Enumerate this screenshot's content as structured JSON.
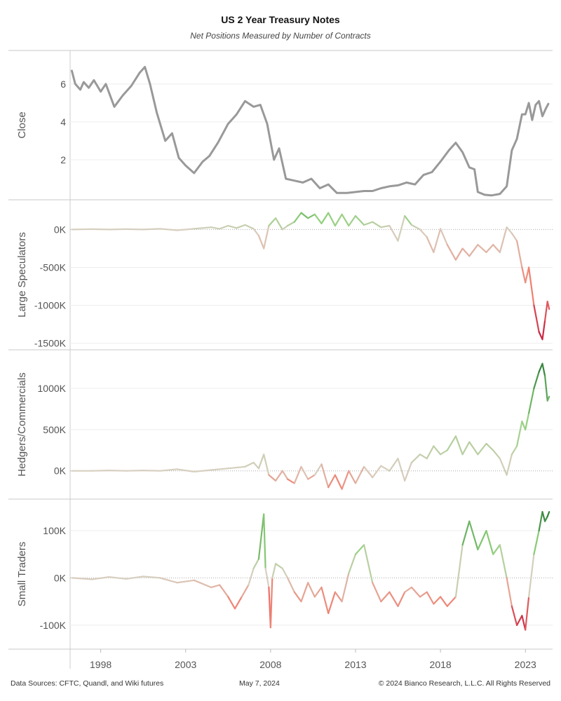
{
  "title": "US 2 Year Treasury Notes",
  "subtitle": "Net Positions Measured by Number of Contracts",
  "footer": {
    "source": "Data Sources: CFTC, Quandl, and Wiki futures",
    "date": "May 7, 2024",
    "copyright": "© 2024 Bianco Research, L.L.C. All Rights Reserved"
  },
  "colors": {
    "close_line": "#999999",
    "negative_strong": "#c0153a",
    "negative_mid": "#f08070",
    "neutral": "#d8cfc0",
    "positive_mid": "#8fd07a",
    "positive_strong": "#2e7d3a"
  },
  "chart_data": {
    "type": "line",
    "x_axis": {
      "label": "",
      "range": [
        1996.2,
        2024.6
      ],
      "ticks": [
        1998,
        2003,
        2008,
        2013,
        2018,
        2023
      ],
      "tick_labels": [
        "1998",
        "2003",
        "2008",
        "2013",
        "2018",
        "2023"
      ]
    },
    "panels": [
      {
        "name": "Close",
        "ylabel": "Close",
        "ylim": [
          0,
          7.4
        ],
        "ticks": [
          2,
          4,
          6
        ],
        "tick_labels": [
          "2",
          "4",
          "6"
        ],
        "zero_line": false,
        "color_mode": "solid",
        "points": [
          [
            1996.3,
            6.7
          ],
          [
            1996.5,
            6.0
          ],
          [
            1996.8,
            5.7
          ],
          [
            1997.0,
            6.1
          ],
          [
            1997.3,
            5.8
          ],
          [
            1997.6,
            6.2
          ],
          [
            1998.0,
            5.6
          ],
          [
            1998.3,
            6.0
          ],
          [
            1998.8,
            4.8
          ],
          [
            1999.3,
            5.4
          ],
          [
            1999.8,
            5.9
          ],
          [
            2000.3,
            6.6
          ],
          [
            2000.6,
            6.9
          ],
          [
            2000.9,
            6.0
          ],
          [
            2001.3,
            4.5
          ],
          [
            2001.8,
            3.0
          ],
          [
            2002.2,
            3.4
          ],
          [
            2002.6,
            2.1
          ],
          [
            2003.0,
            1.7
          ],
          [
            2003.5,
            1.3
          ],
          [
            2004.0,
            1.9
          ],
          [
            2004.4,
            2.2
          ],
          [
            2004.9,
            2.9
          ],
          [
            2005.5,
            3.9
          ],
          [
            2006.0,
            4.4
          ],
          [
            2006.5,
            5.1
          ],
          [
            2007.0,
            4.8
          ],
          [
            2007.4,
            4.9
          ],
          [
            2007.8,
            3.9
          ],
          [
            2008.2,
            2.0
          ],
          [
            2008.5,
            2.6
          ],
          [
            2008.9,
            1.0
          ],
          [
            2009.4,
            0.9
          ],
          [
            2009.9,
            0.8
          ],
          [
            2010.4,
            1.0
          ],
          [
            2010.9,
            0.5
          ],
          [
            2011.4,
            0.7
          ],
          [
            2011.9,
            0.25
          ],
          [
            2012.5,
            0.25
          ],
          [
            2013.0,
            0.3
          ],
          [
            2013.5,
            0.35
          ],
          [
            2014.0,
            0.35
          ],
          [
            2014.5,
            0.5
          ],
          [
            2015.0,
            0.6
          ],
          [
            2015.5,
            0.65
          ],
          [
            2016.0,
            0.8
          ],
          [
            2016.5,
            0.7
          ],
          [
            2017.0,
            1.2
          ],
          [
            2017.5,
            1.35
          ],
          [
            2018.0,
            1.9
          ],
          [
            2018.5,
            2.5
          ],
          [
            2018.9,
            2.9
          ],
          [
            2019.3,
            2.4
          ],
          [
            2019.7,
            1.6
          ],
          [
            2020.0,
            1.5
          ],
          [
            2020.2,
            0.3
          ],
          [
            2020.6,
            0.15
          ],
          [
            2021.0,
            0.12
          ],
          [
            2021.5,
            0.2
          ],
          [
            2021.9,
            0.6
          ],
          [
            2022.2,
            2.5
          ],
          [
            2022.5,
            3.1
          ],
          [
            2022.8,
            4.4
          ],
          [
            2023.0,
            4.4
          ],
          [
            2023.2,
            5.0
          ],
          [
            2023.4,
            4.1
          ],
          [
            2023.6,
            4.9
          ],
          [
            2023.8,
            5.1
          ],
          [
            2024.0,
            4.3
          ],
          [
            2024.2,
            4.7
          ],
          [
            2024.35,
            4.95
          ]
        ]
      },
      {
        "name": "Large Speculators",
        "ylabel": "Large Speculators",
        "ylim": [
          -1550000,
          300000
        ],
        "ticks": [
          0,
          -500000,
          -1000000,
          -1500000
        ],
        "tick_labels": [
          "0K",
          "-500K",
          "-1000K",
          "-1500K"
        ],
        "zero_line": true,
        "color_mode": "diverging",
        "color_scale": [
          -1500000,
          300000
        ],
        "points": [
          [
            1996.3,
            0
          ],
          [
            1997.5,
            5000
          ],
          [
            1998.5,
            0
          ],
          [
            1999.5,
            5000
          ],
          [
            2000.5,
            0
          ],
          [
            2001.5,
            10000
          ],
          [
            2002.5,
            -10000
          ],
          [
            2003.5,
            10000
          ],
          [
            2004.5,
            30000
          ],
          [
            2005.0,
            10000
          ],
          [
            2005.5,
            50000
          ],
          [
            2006.0,
            20000
          ],
          [
            2006.5,
            60000
          ],
          [
            2007.0,
            10000
          ],
          [
            2007.3,
            -80000
          ],
          [
            2007.6,
            -250000
          ],
          [
            2007.9,
            50000
          ],
          [
            2008.3,
            150000
          ],
          [
            2008.7,
            0
          ],
          [
            2009.0,
            50000
          ],
          [
            2009.4,
            100000
          ],
          [
            2009.8,
            220000
          ],
          [
            2010.2,
            150000
          ],
          [
            2010.6,
            200000
          ],
          [
            2011.0,
            80000
          ],
          [
            2011.4,
            220000
          ],
          [
            2011.8,
            50000
          ],
          [
            2012.2,
            200000
          ],
          [
            2012.6,
            50000
          ],
          [
            2013.0,
            180000
          ],
          [
            2013.5,
            60000
          ],
          [
            2014.0,
            100000
          ],
          [
            2014.5,
            30000
          ],
          [
            2015.0,
            50000
          ],
          [
            2015.5,
            -150000
          ],
          [
            2015.9,
            180000
          ],
          [
            2016.3,
            60000
          ],
          [
            2016.8,
            0
          ],
          [
            2017.2,
            -100000
          ],
          [
            2017.6,
            -300000
          ],
          [
            2018.0,
            10000
          ],
          [
            2018.4,
            -200000
          ],
          [
            2018.9,
            -400000
          ],
          [
            2019.3,
            -250000
          ],
          [
            2019.7,
            -350000
          ],
          [
            2020.2,
            -200000
          ],
          [
            2020.7,
            -300000
          ],
          [
            2021.1,
            -200000
          ],
          [
            2021.5,
            -300000
          ],
          [
            2021.9,
            30000
          ],
          [
            2022.2,
            -50000
          ],
          [
            2022.5,
            -150000
          ],
          [
            2022.8,
            -500000
          ],
          [
            2023.0,
            -700000
          ],
          [
            2023.2,
            -500000
          ],
          [
            2023.5,
            -1000000
          ],
          [
            2023.8,
            -1350000
          ],
          [
            2024.0,
            -1450000
          ],
          [
            2024.15,
            -1200000
          ],
          [
            2024.3,
            -950000
          ],
          [
            2024.4,
            -1050000
          ]
        ]
      },
      {
        "name": "Hedgers/Commercials",
        "ylabel": "Hedgers/Commercials",
        "ylim": [
          -300000,
          1400000
        ],
        "ticks": [
          0,
          500000,
          1000000
        ],
        "tick_labels": [
          "0K",
          "500K",
          "1000K"
        ],
        "zero_line": true,
        "color_mode": "diverging",
        "color_scale": [
          -300000,
          1300000
        ],
        "points": [
          [
            1996.3,
            0
          ],
          [
            1997.5,
            0
          ],
          [
            1998.5,
            5000
          ],
          [
            1999.5,
            0
          ],
          [
            2000.5,
            5000
          ],
          [
            2001.5,
            0
          ],
          [
            2002.5,
            20000
          ],
          [
            2003.5,
            -10000
          ],
          [
            2004.5,
            10000
          ],
          [
            2005.5,
            30000
          ],
          [
            2006.5,
            50000
          ],
          [
            2007.0,
            100000
          ],
          [
            2007.3,
            30000
          ],
          [
            2007.6,
            200000
          ],
          [
            2007.9,
            -50000
          ],
          [
            2008.3,
            -120000
          ],
          [
            2008.7,
            0
          ],
          [
            2009.0,
            -100000
          ],
          [
            2009.4,
            -150000
          ],
          [
            2009.8,
            50000
          ],
          [
            2010.2,
            -100000
          ],
          [
            2010.6,
            -50000
          ],
          [
            2011.0,
            80000
          ],
          [
            2011.4,
            -200000
          ],
          [
            2011.8,
            -50000
          ],
          [
            2012.2,
            -220000
          ],
          [
            2012.6,
            0
          ],
          [
            2013.0,
            -150000
          ],
          [
            2013.5,
            50000
          ],
          [
            2014.0,
            -80000
          ],
          [
            2014.5,
            60000
          ],
          [
            2015.0,
            0
          ],
          [
            2015.5,
            150000
          ],
          [
            2015.9,
            -120000
          ],
          [
            2016.3,
            100000
          ],
          [
            2016.8,
            200000
          ],
          [
            2017.2,
            150000
          ],
          [
            2017.6,
            300000
          ],
          [
            2018.0,
            200000
          ],
          [
            2018.4,
            250000
          ],
          [
            2018.9,
            420000
          ],
          [
            2019.3,
            200000
          ],
          [
            2019.7,
            350000
          ],
          [
            2020.2,
            200000
          ],
          [
            2020.7,
            330000
          ],
          [
            2021.1,
            250000
          ],
          [
            2021.5,
            150000
          ],
          [
            2021.9,
            -50000
          ],
          [
            2022.2,
            200000
          ],
          [
            2022.5,
            300000
          ],
          [
            2022.8,
            600000
          ],
          [
            2023.0,
            500000
          ],
          [
            2023.2,
            700000
          ],
          [
            2023.5,
            1000000
          ],
          [
            2023.8,
            1200000
          ],
          [
            2024.0,
            1300000
          ],
          [
            2024.15,
            1150000
          ],
          [
            2024.3,
            850000
          ],
          [
            2024.4,
            900000
          ]
        ]
      },
      {
        "name": "Small Traders",
        "ylabel": "Small Traders",
        "ylim": [
          -130000,
          155000
        ],
        "ticks": [
          100000,
          0,
          -100000
        ],
        "tick_labels": [
          "100K",
          "0K",
          "-100K"
        ],
        "zero_line": true,
        "color_mode": "diverging",
        "color_scale": [
          -110000,
          140000
        ],
        "points": [
          [
            1996.3,
            0
          ],
          [
            1997.5,
            -3000
          ],
          [
            1998.5,
            2000
          ],
          [
            1999.5,
            -2000
          ],
          [
            2000.5,
            3000
          ],
          [
            2001.5,
            0
          ],
          [
            2002.5,
            -10000
          ],
          [
            2003.5,
            -5000
          ],
          [
            2004.5,
            -20000
          ],
          [
            2005.0,
            -15000
          ],
          [
            2005.5,
            -40000
          ],
          [
            2005.9,
            -65000
          ],
          [
            2006.3,
            -40000
          ],
          [
            2006.7,
            -15000
          ],
          [
            2007.0,
            20000
          ],
          [
            2007.3,
            40000
          ],
          [
            2007.6,
            135000
          ],
          [
            2007.7,
            20000
          ],
          [
            2007.9,
            -20000
          ],
          [
            2008.0,
            -105000
          ],
          [
            2008.1,
            0
          ],
          [
            2008.3,
            30000
          ],
          [
            2008.7,
            20000
          ],
          [
            2009.0,
            0
          ],
          [
            2009.4,
            -30000
          ],
          [
            2009.8,
            -50000
          ],
          [
            2010.2,
            -10000
          ],
          [
            2010.6,
            -40000
          ],
          [
            2011.0,
            -20000
          ],
          [
            2011.4,
            -75000
          ],
          [
            2011.8,
            -30000
          ],
          [
            2012.2,
            -50000
          ],
          [
            2012.6,
            10000
          ],
          [
            2013.0,
            50000
          ],
          [
            2013.5,
            70000
          ],
          [
            2014.0,
            -10000
          ],
          [
            2014.5,
            -50000
          ],
          [
            2015.0,
            -30000
          ],
          [
            2015.5,
            -60000
          ],
          [
            2015.9,
            -30000
          ],
          [
            2016.3,
            -20000
          ],
          [
            2016.8,
            -40000
          ],
          [
            2017.2,
            -30000
          ],
          [
            2017.6,
            -55000
          ],
          [
            2018.0,
            -40000
          ],
          [
            2018.4,
            -60000
          ],
          [
            2018.9,
            -40000
          ],
          [
            2019.3,
            70000
          ],
          [
            2019.7,
            120000
          ],
          [
            2020.2,
            60000
          ],
          [
            2020.7,
            100000
          ],
          [
            2021.1,
            50000
          ],
          [
            2021.5,
            70000
          ],
          [
            2021.9,
            0
          ],
          [
            2022.2,
            -60000
          ],
          [
            2022.5,
            -100000
          ],
          [
            2022.8,
            -80000
          ],
          [
            2023.0,
            -110000
          ],
          [
            2023.2,
            -40000
          ],
          [
            2023.5,
            50000
          ],
          [
            2023.8,
            100000
          ],
          [
            2024.0,
            140000
          ],
          [
            2024.15,
            120000
          ],
          [
            2024.3,
            130000
          ],
          [
            2024.4,
            140000
          ]
        ]
      }
    ]
  }
}
